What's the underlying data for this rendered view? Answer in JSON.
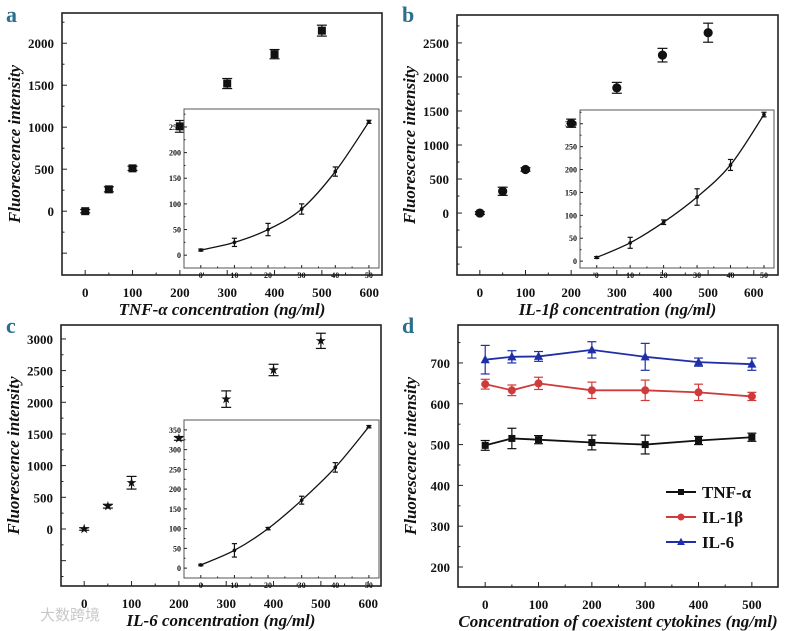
{
  "chart_data": [
    {
      "type": "scatter",
      "panel": "a",
      "xlabel": "TNF-α concentration (ng/ml)",
      "ylabel": "Fluorescence intensity",
      "xlim": [
        -49,
        627
      ],
      "ylim": [
        -760,
        2360
      ],
      "xticks": [
        0,
        100,
        200,
        300,
        400,
        500,
        600
      ],
      "yticks": [
        0,
        500,
        1000,
        1500,
        2000
      ],
      "marker": "square",
      "color": "#111111",
      "x": [
        0,
        50,
        100,
        200,
        300,
        400,
        500
      ],
      "y": [
        0,
        260,
        510,
        1010,
        1520,
        1870,
        2150
      ],
      "err": [
        20,
        30,
        25,
        70,
        60,
        55,
        65
      ],
      "inset": {
        "type": "line",
        "xlim": [
          -5,
          53
        ],
        "ylim": [
          -25,
          285
        ],
        "xticks": [
          0,
          10,
          20,
          30,
          40,
          50
        ],
        "yticks": [
          0,
          50,
          100,
          150,
          200,
          250
        ],
        "x": [
          0,
          10,
          20,
          30,
          40,
          50
        ],
        "y": [
          10,
          25,
          50,
          90,
          163,
          260
        ],
        "err": [
          2,
          8,
          12,
          10,
          9,
          3
        ]
      }
    },
    {
      "type": "scatter",
      "panel": "b",
      "xlabel": "IL-1β concentration (ng/ml)",
      "ylabel": "Fluorescence intensity",
      "xlim": [
        -50,
        653
      ],
      "ylim": [
        -910,
        2910
      ],
      "xticks": [
        0,
        100,
        200,
        300,
        400,
        500,
        600
      ],
      "yticks": [
        0,
        500,
        1000,
        1500,
        2000,
        2500
      ],
      "marker": "circle",
      "color": "#111111",
      "x": [
        0,
        50,
        100,
        200,
        300,
        400,
        500
      ],
      "y": [
        0,
        320,
        640,
        1320,
        1840,
        2320,
        2650
      ],
      "err": [
        20,
        60,
        25,
        60,
        80,
        100,
        140
      ],
      "inset": {
        "type": "line",
        "xlim": [
          -5,
          53
        ],
        "ylim": [
          -15,
          330
        ],
        "xticks": [
          0,
          10,
          20,
          30,
          40,
          50
        ],
        "yticks": [
          0,
          50,
          100,
          150,
          200,
          250,
          300
        ],
        "x": [
          0,
          10,
          20,
          30,
          40,
          50
        ],
        "y": [
          8,
          40,
          85,
          140,
          210,
          320
        ],
        "err": [
          2,
          12,
          5,
          18,
          12,
          5
        ]
      }
    },
    {
      "type": "scatter",
      "panel": "c",
      "xlabel": "IL-6 concentration (ng/ml)",
      "ylabel": "Fluorescence intensity",
      "xlim": [
        -49,
        627
      ],
      "ylim": [
        -900,
        3220
      ],
      "xticks": [
        0,
        100,
        200,
        300,
        400,
        500,
        600
      ],
      "yticks": [
        0,
        500,
        1000,
        1500,
        2000,
        2500,
        3000
      ],
      "marker": "star",
      "color": "#111111",
      "x": [
        0,
        50,
        100,
        200,
        300,
        400,
        500
      ],
      "y": [
        0,
        360,
        730,
        1430,
        2050,
        2510,
        2970
      ],
      "err": [
        20,
        30,
        100,
        30,
        130,
        90,
        120
      ],
      "inset": {
        "type": "line",
        "xlim": [
          -5,
          53
        ],
        "ylim": [
          -25,
          375
        ],
        "xticks": [
          0,
          10,
          20,
          30,
          40,
          50
        ],
        "yticks": [
          0,
          50,
          100,
          150,
          200,
          250,
          300,
          350
        ],
        "x": [
          0,
          10,
          20,
          30,
          40,
          50
        ],
        "y": [
          8,
          45,
          100,
          172,
          255,
          358
        ],
        "err": [
          2,
          17,
          3,
          10,
          12,
          3
        ]
      }
    },
    {
      "type": "line",
      "panel": "d",
      "xlabel": "Concentration of coexistent cytokines (ng/ml)",
      "ylabel": "Fluorescence intensity",
      "xlim": [
        -51,
        549
      ],
      "ylim": [
        151,
        793
      ],
      "xticks": [
        0,
        100,
        200,
        300,
        400,
        500
      ],
      "yticks": [
        200,
        300,
        400,
        500,
        600,
        700
      ],
      "legend": "bottom-right",
      "x": [
        0,
        50,
        100,
        200,
        300,
        400,
        500
      ],
      "series": [
        {
          "name": "TNF-α",
          "marker": "square",
          "color": "#111111",
          "values": [
            498,
            515,
            512,
            505,
            500,
            510,
            518
          ],
          "err": [
            12,
            25,
            10,
            18,
            23,
            10,
            10
          ]
        },
        {
          "name": "IL-1β",
          "marker": "circle",
          "color": "#d03a3a",
          "values": [
            648,
            633,
            650,
            633,
            633,
            628,
            618
          ],
          "err": [
            12,
            13,
            15,
            20,
            25,
            20,
            10
          ]
        },
        {
          "name": "IL-6",
          "marker": "triangle",
          "color": "#1f2fa8",
          "values": [
            708,
            715,
            716,
            732,
            715,
            702,
            697
          ],
          "err": [
            35,
            15,
            12,
            20,
            33,
            10,
            15
          ]
        }
      ]
    }
  ],
  "watermark": "大数跨境"
}
